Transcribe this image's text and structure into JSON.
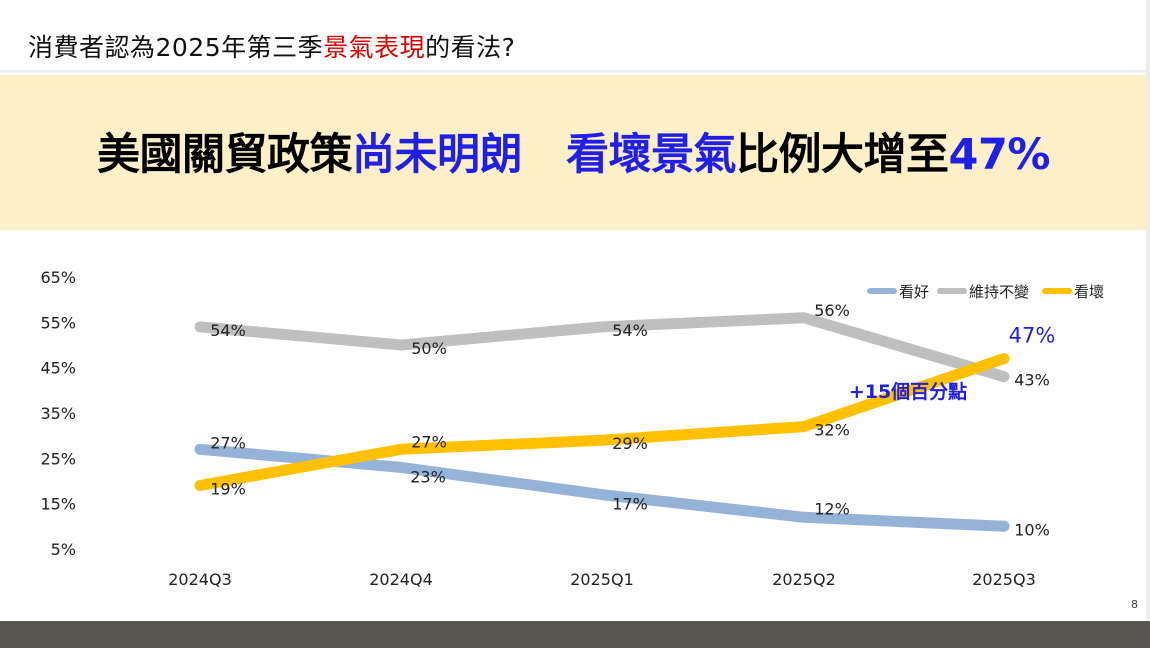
{
  "slide": {
    "title_prefix": "消費者認為2025年第三季",
    "title_highlight": "景氣表現",
    "title_suffix": "的看法?",
    "headline_part1": "美國關貿政策",
    "headline_part2": "尚未明朗",
    "headline_part3": "看壞景氣",
    "headline_part4": "比例大增至",
    "headline_part5": "47%",
    "page_number": "8"
  },
  "colors": {
    "title_highlight": "#d90000",
    "headline_blue": "#1f1fe6",
    "banner_bg": "#fdf0c8",
    "footer": "#59564e"
  },
  "chart_data": {
    "type": "line",
    "categories": [
      "2024Q3",
      "2024Q4",
      "2025Q1",
      "2025Q2",
      "2025Q3"
    ],
    "ylim": [
      5,
      65
    ],
    "yticks": [
      5,
      15,
      25,
      35,
      45,
      55,
      65
    ],
    "ytick_labels": [
      "5%",
      "15%",
      "25%",
      "35%",
      "45%",
      "55%",
      "65%"
    ],
    "grid": false,
    "legend_position": "top-right",
    "series": [
      {
        "name": "看好",
        "color": "#95b3d7",
        "values": [
          27,
          23,
          17,
          12,
          10
        ],
        "labels": [
          "27%",
          "23%",
          "17%",
          "12%",
          "10%"
        ]
      },
      {
        "name": "維持不變",
        "color": "#bfbfbf",
        "values": [
          54,
          50,
          54,
          56,
          43
        ],
        "labels": [
          "54%",
          "50%",
          "54%",
          "56%",
          "43%"
        ]
      },
      {
        "name": "看壞",
        "color": "#ffc000",
        "values": [
          19,
          27,
          29,
          32,
          47
        ],
        "labels": [
          "19%",
          "27%",
          "29%",
          "32%",
          "47%"
        ]
      }
    ],
    "annotation": "+15個百分點"
  }
}
